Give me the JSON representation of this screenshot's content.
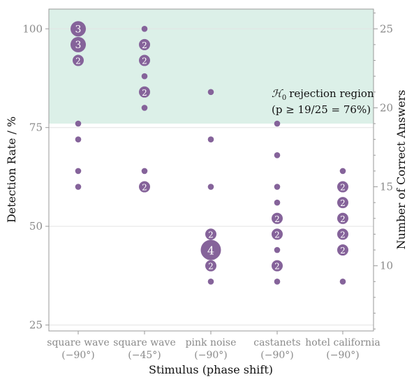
{
  "chart_data": {
    "type": "scatter",
    "title": "",
    "xlabel": "Stimulus (phase shift)",
    "ylabel": "Detection Rate / %",
    "y2label": "Number of Correct Answers",
    "ylim": [
      23.5,
      105
    ],
    "y2_per_y1": 0.25,
    "yticks": [
      25,
      50,
      75,
      100
    ],
    "yticks_labels": [
      "25",
      "50",
      "75",
      "100"
    ],
    "y2ticks": [
      10,
      15,
      20,
      25
    ],
    "y2ticks_labels": [
      "10",
      "15",
      "20",
      "25"
    ],
    "grid": true,
    "categories": [
      {
        "line1": "square wave",
        "line2": "(−90°)"
      },
      {
        "line1": "square wave",
        "line2": "(−45°)"
      },
      {
        "line1": "pink noise",
        "line2": "(−90°)"
      },
      {
        "line1": "castanets",
        "line2": "(−90°)"
      },
      {
        "line1": "hotel california",
        "line2": "(−90°)"
      }
    ],
    "rejection_region": {
      "threshold": 76,
      "label_line1": "rejection region",
      "label_line2": "(p ≥ 19/25 = 76%)",
      "color": "#dcf0e8"
    },
    "marker_color": "#85639a",
    "points": [
      {
        "category": 0,
        "y": 100,
        "count": 3
      },
      {
        "category": 0,
        "y": 96,
        "count": 3
      },
      {
        "category": 0,
        "y": 92,
        "count": 2
      },
      {
        "category": 0,
        "y": 76,
        "count": 1
      },
      {
        "category": 0,
        "y": 72,
        "count": 1
      },
      {
        "category": 0,
        "y": 64,
        "count": 1
      },
      {
        "category": 0,
        "y": 60,
        "count": 1
      },
      {
        "category": 1,
        "y": 100,
        "count": 1
      },
      {
        "category": 1,
        "y": 96,
        "count": 2
      },
      {
        "category": 1,
        "y": 92,
        "count": 2
      },
      {
        "category": 1,
        "y": 88,
        "count": 1
      },
      {
        "category": 1,
        "y": 84,
        "count": 2
      },
      {
        "category": 1,
        "y": 80,
        "count": 1
      },
      {
        "category": 1,
        "y": 64,
        "count": 1
      },
      {
        "category": 1,
        "y": 60,
        "count": 2
      },
      {
        "category": 2,
        "y": 84,
        "count": 1
      },
      {
        "category": 2,
        "y": 72,
        "count": 1
      },
      {
        "category": 2,
        "y": 60,
        "count": 1
      },
      {
        "category": 2,
        "y": 48,
        "count": 2
      },
      {
        "category": 2,
        "y": 44,
        "count": 4
      },
      {
        "category": 2,
        "y": 40,
        "count": 2
      },
      {
        "category": 2,
        "y": 36,
        "count": 1
      },
      {
        "category": 3,
        "y": 76,
        "count": 1
      },
      {
        "category": 3,
        "y": 68,
        "count": 1
      },
      {
        "category": 3,
        "y": 60,
        "count": 1
      },
      {
        "category": 3,
        "y": 56,
        "count": 1
      },
      {
        "category": 3,
        "y": 52,
        "count": 2
      },
      {
        "category": 3,
        "y": 48,
        "count": 2
      },
      {
        "category": 3,
        "y": 44,
        "count": 1
      },
      {
        "category": 3,
        "y": 40,
        "count": 2
      },
      {
        "category": 3,
        "y": 36,
        "count": 1
      },
      {
        "category": 4,
        "y": 64,
        "count": 1
      },
      {
        "category": 4,
        "y": 60,
        "count": 2
      },
      {
        "category": 4,
        "y": 56,
        "count": 2
      },
      {
        "category": 4,
        "y": 52,
        "count": 2
      },
      {
        "category": 4,
        "y": 48,
        "count": 2
      },
      {
        "category": 4,
        "y": 44,
        "count": 2
      },
      {
        "category": 4,
        "y": 36,
        "count": 1
      }
    ]
  }
}
